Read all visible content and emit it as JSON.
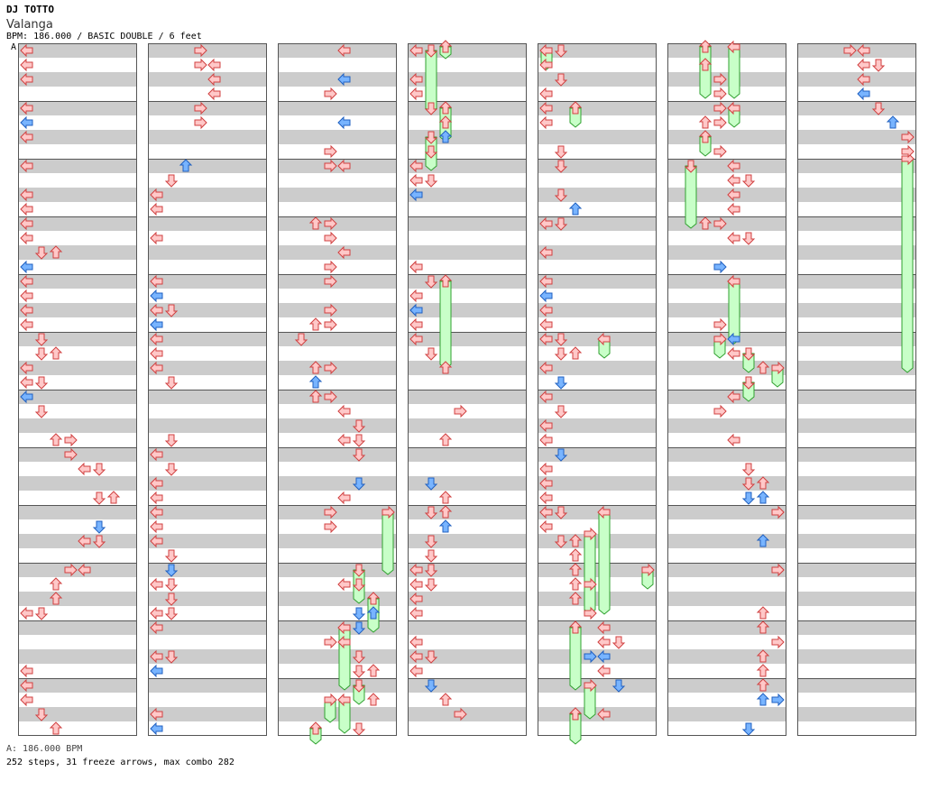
{
  "header": {
    "artist": "DJ TOTTO",
    "title": "Valanga",
    "info": "BPM: 186.000 / BASIC DOUBLE / 6 feet",
    "marker": "A"
  },
  "footer": {
    "bpm_line": "A: 186.000 BPM",
    "stats_line": "252 steps, 31 freeze arrows, max combo 282"
  },
  "colors": {
    "band": "#cccccc",
    "border": "#555555",
    "note_red_fill": "#ffc8c8",
    "note_red_stroke": "#d04040",
    "note_blue_fill": "#78b4ff",
    "note_blue_stroke": "#2060c0",
    "freeze_fill": "#c8ffc8",
    "freeze_stroke": "#30a030"
  },
  "chart": {
    "columns": 7,
    "measures_per_column": 12,
    "lanes": 8,
    "rows_per_measure": 8
  }
}
